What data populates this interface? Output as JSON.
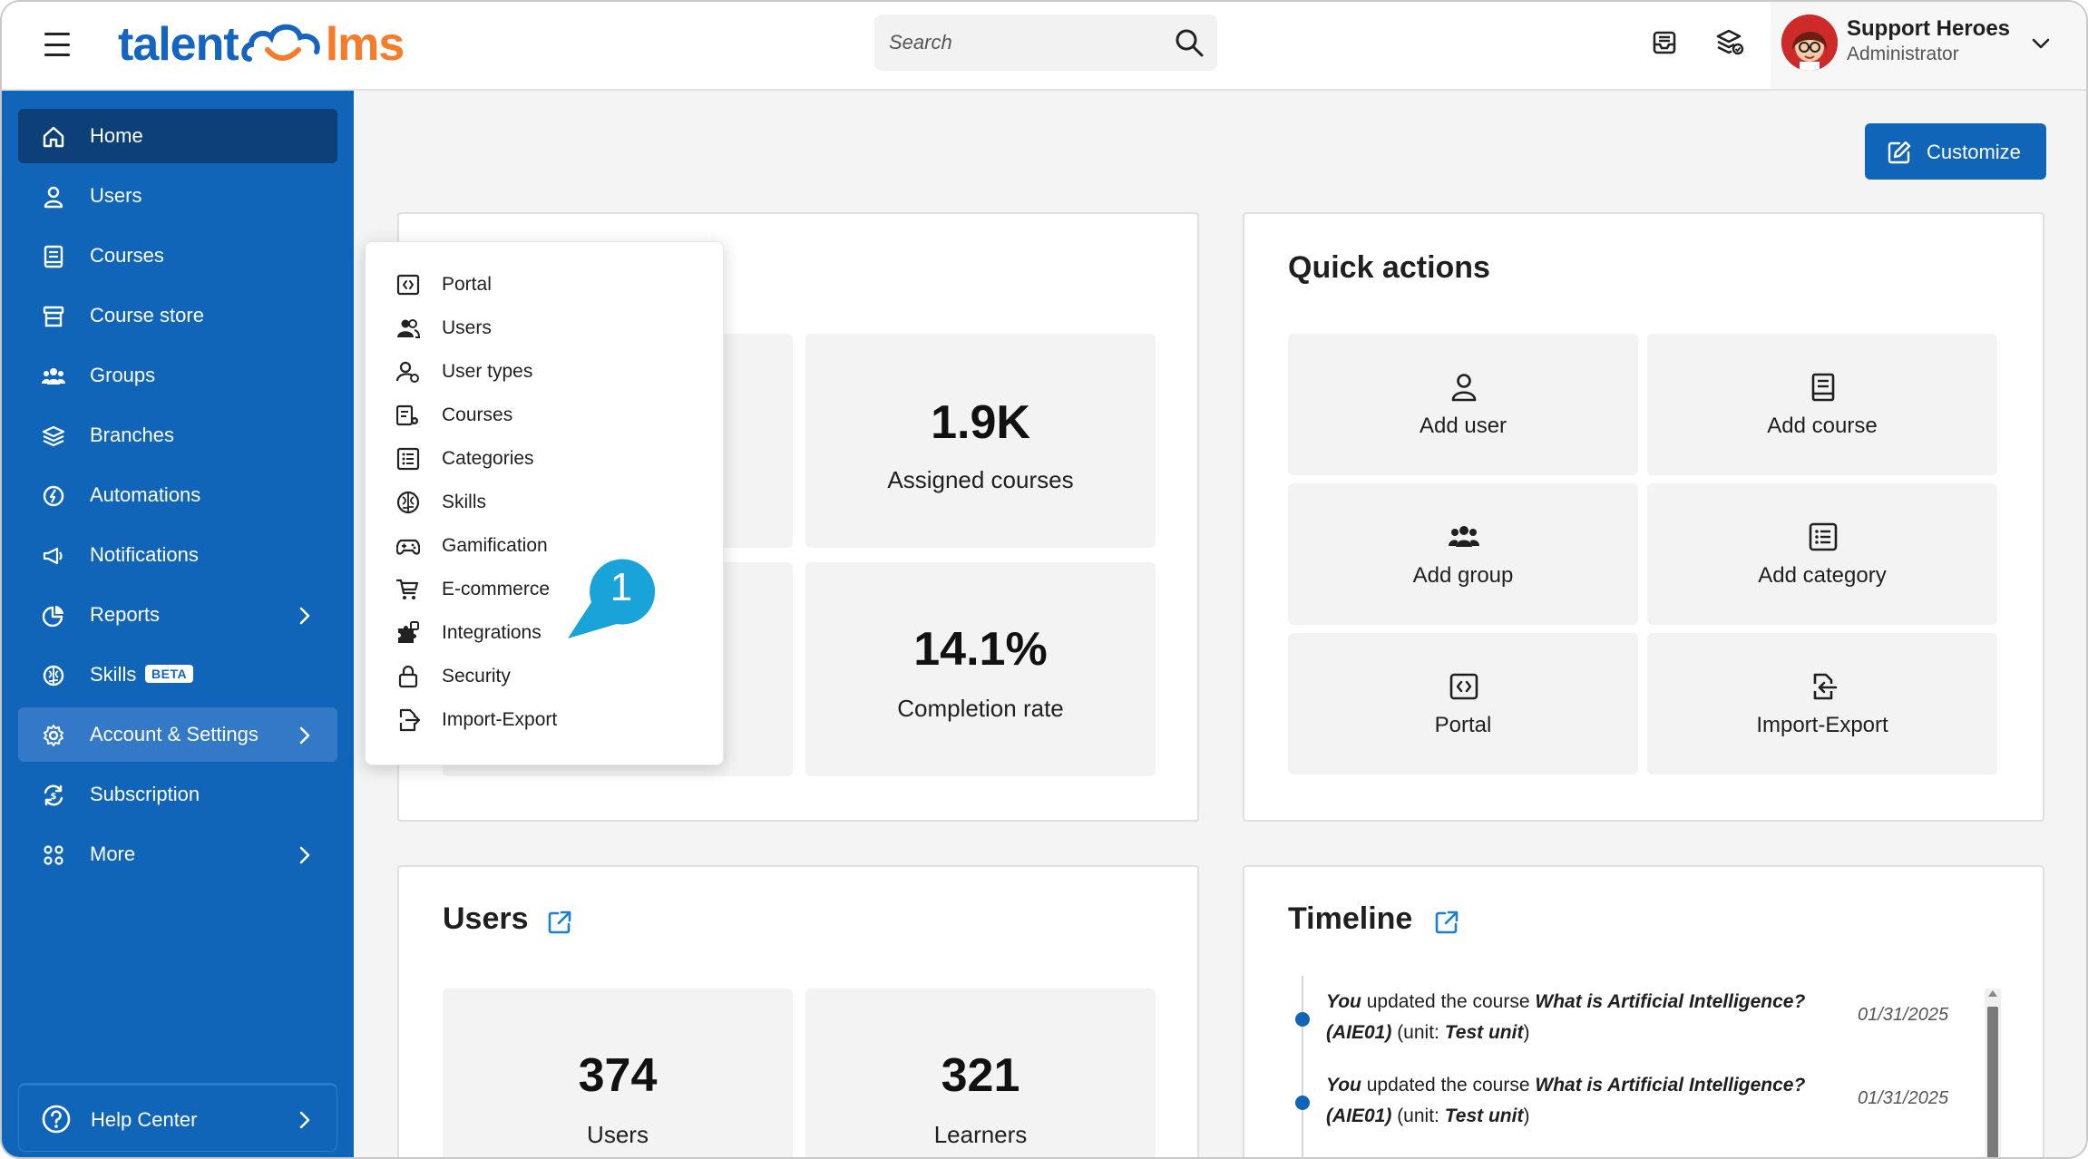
{
  "app": {
    "logo_left": "talent",
    "logo_right": "lms"
  },
  "header": {
    "search_placeholder": "Search",
    "user_name": "Support Heroes",
    "user_role": "Administrator"
  },
  "sidebar": {
    "items": [
      {
        "label": "Home"
      },
      {
        "label": "Users"
      },
      {
        "label": "Courses"
      },
      {
        "label": "Course store"
      },
      {
        "label": "Groups"
      },
      {
        "label": "Branches"
      },
      {
        "label": "Automations"
      },
      {
        "label": "Notifications"
      },
      {
        "label": "Reports"
      },
      {
        "label": "Skills",
        "badge": "BETA"
      },
      {
        "label": "Account & Settings"
      },
      {
        "label": "Subscription"
      },
      {
        "label": "More"
      }
    ],
    "help_center": "Help Center"
  },
  "main": {
    "customize_label": "Customize",
    "overview": {
      "stats": [
        {
          "value": "1.9K",
          "label": "Assigned courses"
        },
        {
          "value": "14.1%",
          "label": "Completion rate"
        }
      ]
    },
    "quick_actions": {
      "title": "Quick actions",
      "items": [
        {
          "label": "Add user"
        },
        {
          "label": "Add course"
        },
        {
          "label": "Add group"
        },
        {
          "label": "Add category"
        },
        {
          "label": "Portal"
        },
        {
          "label": "Import-Export"
        }
      ]
    },
    "users_panel": {
      "title": "Users",
      "stats": [
        {
          "value": "374",
          "label": "Users"
        },
        {
          "value": "321",
          "label": "Learners"
        }
      ]
    },
    "timeline": {
      "title": "Timeline",
      "entries": [
        {
          "actor": "You",
          "action": " updated the course ",
          "course": "What is Artificial Intelligence?",
          "code": "(AIE01)",
          "unit_prefix": " (unit: ",
          "unit": "Test unit",
          "unit_suffix": ")",
          "date": "01/31/2025"
        },
        {
          "actor": "You",
          "action": " updated the course ",
          "course": "What is Artificial Intelligence?",
          "code": "(AIE01)",
          "unit_prefix": " (unit: ",
          "unit": "Test unit",
          "unit_suffix": ")",
          "date": "01/31/2025"
        }
      ]
    }
  },
  "settings_menu": {
    "items": [
      {
        "label": "Portal"
      },
      {
        "label": "Users"
      },
      {
        "label": "User types"
      },
      {
        "label": "Courses"
      },
      {
        "label": "Categories"
      },
      {
        "label": "Skills"
      },
      {
        "label": "Gamification"
      },
      {
        "label": "E-commerce"
      },
      {
        "label": "Integrations"
      },
      {
        "label": "Security"
      },
      {
        "label": "Import-Export"
      }
    ]
  },
  "callout": {
    "number": "1",
    "color": "#1aa3d9"
  },
  "colors": {
    "brand_blue": "#1065b8",
    "sidebar_active": "#0d3f78",
    "logo_orange": "#f47c2a"
  }
}
